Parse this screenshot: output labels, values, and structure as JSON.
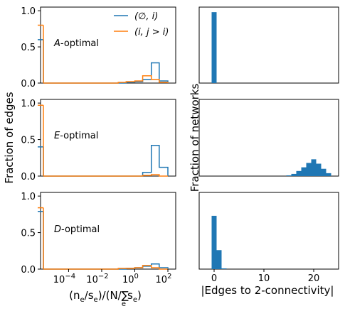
{
  "chart_data": [
    {
      "type": "histogram-step",
      "panel_label": "A-optimal",
      "panel_label_parts": [
        "A",
        "-optimal"
      ],
      "xscale": "log",
      "ylim": [
        0,
        1.05
      ],
      "yticks": [
        "0.0",
        "0.5",
        "1.0"
      ],
      "legend": {
        "placement": "top-right",
        "entries": [
          {
            "label": "(∅, i)",
            "color": "#1f77b4"
          },
          {
            "label": "(i, j > i)",
            "color": "#ff7f0e"
          }
        ]
      },
      "series": [
        {
          "name": "(∅, i)",
          "color": "#1f77b4",
          "spike": {
            "x": 3e-06,
            "value": 0.6
          },
          "bin_edges": [
            3e-06,
            0.01,
            0.1,
            0.3,
            1,
            3,
            10,
            30,
            100
          ],
          "values": [
            0,
            0,
            0,
            0.01,
            0.02,
            0.05,
            0.28,
            0.03
          ]
        },
        {
          "name": "(i, j > i)",
          "color": "#ff7f0e",
          "spike": {
            "x": 3e-06,
            "value": 0.8
          },
          "bin_edges": [
            3e-06,
            0.01,
            0.1,
            0.3,
            1,
            3,
            10,
            30,
            100
          ],
          "values": [
            0,
            0,
            0.01,
            0.02,
            0.03,
            0.1,
            0.05,
            0.01
          ]
        }
      ]
    },
    {
      "type": "histogram-step",
      "panel_label": "E-optimal",
      "panel_label_parts": [
        "E",
        "-optimal"
      ],
      "xscale": "log",
      "ylim": [
        0,
        1.05
      ],
      "yticks": [
        "0.0",
        "0.5",
        "1.0"
      ],
      "series": [
        {
          "name": "(∅, i)",
          "color": "#1f77b4",
          "spike": {
            "x": 3e-06,
            "value": 0.4
          },
          "bin_edges": [
            3e-06,
            1,
            3,
            10,
            30,
            100
          ],
          "values": [
            0,
            0.0,
            0.05,
            0.42,
            0.12
          ]
        },
        {
          "name": "(i, j > i)",
          "color": "#ff7f0e",
          "spike": {
            "x": 3e-06,
            "value": 0.97
          },
          "bin_edges": [
            3e-06,
            1,
            3,
            10,
            30,
            100
          ],
          "values": [
            0,
            0.0,
            0.01,
            0.02,
            0.0
          ]
        }
      ]
    },
    {
      "type": "histogram-step",
      "panel_label": "D-optimal",
      "panel_label_parts": [
        "D",
        "-optimal"
      ],
      "xscale": "log",
      "ylim": [
        0,
        1.05
      ],
      "yticks": [
        "0.0",
        "0.5",
        "1.0"
      ],
      "xticks": [
        {
          "value": 0.0001,
          "base": "10",
          "exp": "−4"
        },
        {
          "value": 0.01,
          "base": "10",
          "exp": "−2"
        },
        {
          "value": 1,
          "base": "10",
          "exp": "0"
        },
        {
          "value": 100,
          "base": "10",
          "exp": "2"
        }
      ],
      "series": [
        {
          "name": "(∅, i)",
          "color": "#1f77b4",
          "spike": {
            "x": 3e-06,
            "value": 0.79
          },
          "bin_edges": [
            3e-06,
            0.01,
            0.1,
            0.3,
            1,
            3,
            10,
            30,
            100
          ],
          "values": [
            0,
            0,
            0,
            0.01,
            0.02,
            0.04,
            0.07,
            0.02
          ]
        },
        {
          "name": "(i, j > i)",
          "color": "#ff7f0e",
          "spike": {
            "x": 3e-06,
            "value": 0.84
          },
          "bin_edges": [
            3e-06,
            0.01,
            0.1,
            0.3,
            1,
            3,
            10,
            30,
            100
          ],
          "values": [
            0,
            0,
            0.01,
            0.01,
            0.02,
            0.05,
            0.02,
            0.0
          ]
        }
      ]
    },
    {
      "type": "bar",
      "panel": "A-optimal",
      "ylim": [
        0,
        1.05
      ],
      "color": "#1f77b4",
      "bins": [
        {
          "x": 0,
          "value": 0.98
        }
      ]
    },
    {
      "type": "bar",
      "panel": "E-optimal",
      "ylim": [
        0,
        1.05
      ],
      "color": "#1f77b4",
      "bins": [
        {
          "x": 15,
          "value": 0.01
        },
        {
          "x": 16,
          "value": 0.03
        },
        {
          "x": 17,
          "value": 0.07
        },
        {
          "x": 18,
          "value": 0.12
        },
        {
          "x": 19,
          "value": 0.18
        },
        {
          "x": 20,
          "value": 0.23
        },
        {
          "x": 21,
          "value": 0.17
        },
        {
          "x": 22,
          "value": 0.1
        },
        {
          "x": 23,
          "value": 0.04
        }
      ]
    },
    {
      "type": "bar",
      "panel": "D-optimal",
      "ylim": [
        0,
        1.05
      ],
      "color": "#1f77b4",
      "xticks": [
        0,
        10,
        20
      ],
      "bins": [
        {
          "x": 0,
          "value": 0.73
        },
        {
          "x": 1,
          "value": 0.26
        },
        {
          "x": 2,
          "value": 0.01
        }
      ]
    }
  ],
  "labels": {
    "left_ylabel": "Fraction of edges",
    "right_ylabel": "Fraction of networks",
    "right_xlabel": "|Edges to 2-connectivity|",
    "left_xlabel_parts": [
      "(n",
      "e",
      "/s",
      "e",
      ")/(N/∑",
      "e",
      "s",
      "e",
      ")"
    ]
  }
}
